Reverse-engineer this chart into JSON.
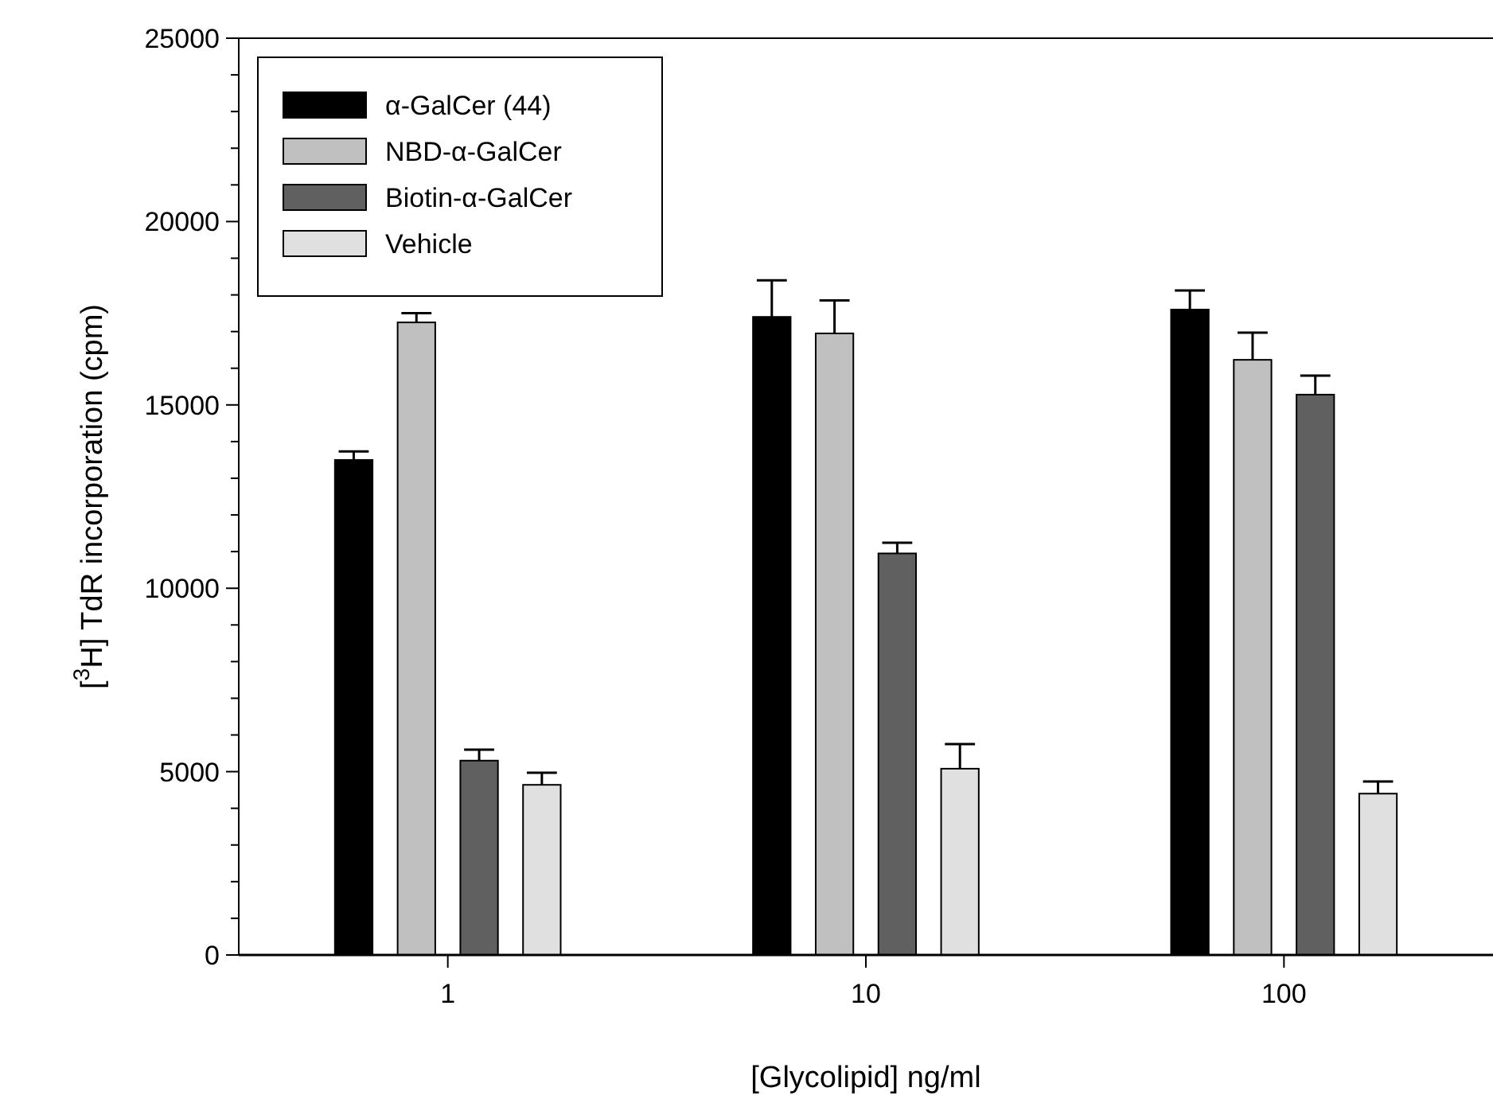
{
  "chart_data": {
    "type": "bar",
    "xlabel": "[Glycolipid] ng/ml",
    "ylabel": "[$^{3}$H] TdR incorporation (cpm)",
    "categories": [
      "1",
      "10",
      "100"
    ],
    "series": [
      {
        "name": "α-GalCer (44)",
        "color": "#000000",
        "values": [
          13500,
          17400,
          17600
        ],
        "errors": [
          230,
          1000,
          520
        ]
      },
      {
        "name": "NBD-α-GalCer",
        "color": "#c0c0c0",
        "values": [
          17250,
          16950,
          16230
        ],
        "errors": [
          250,
          900,
          740
        ]
      },
      {
        "name": "Biotin-α-GalCer",
        "color": "#606060",
        "values": [
          5300,
          10950,
          15280
        ],
        "errors": [
          300,
          290,
          520
        ]
      },
      {
        "name": "Vehicle",
        "color": "#e0e0e0",
        "values": [
          4640,
          5080,
          4400
        ],
        "errors": [
          330,
          670,
          330
        ]
      }
    ],
    "ylim": [
      0,
      25000
    ],
    "yticks": [
      0,
      {
        "value": 1000,
        "label": null
      },
      {
        "value": 2000,
        "label": null
      },
      {
        "value": 3000,
        "label": null
      },
      {
        "value": 4000,
        "label": null
      },
      5000,
      {
        "value": 6000,
        "label": null
      },
      {
        "value": 7000,
        "label": null
      },
      {
        "value": 8000,
        "label": null
      },
      {
        "value": 9000,
        "label": null
      },
      10000,
      {
        "value": 11000,
        "label": null
      },
      {
        "value": 12000,
        "label": null
      },
      {
        "value": 13000,
        "label": null
      },
      {
        "value": 14000,
        "label": null
      },
      15000,
      {
        "value": 16000,
        "label": null
      },
      {
        "value": 17000,
        "label": null
      },
      {
        "value": 18000,
        "label": null
      },
      {
        "value": 19000,
        "label": null
      },
      20000,
      {
        "value": 21000,
        "label": null
      },
      {
        "value": 22000,
        "label": null
      },
      {
        "value": 23000,
        "label": null
      },
      {
        "value": 24000,
        "label": null
      },
      25000
    ],
    "grid": false,
    "legend": "top left"
  }
}
